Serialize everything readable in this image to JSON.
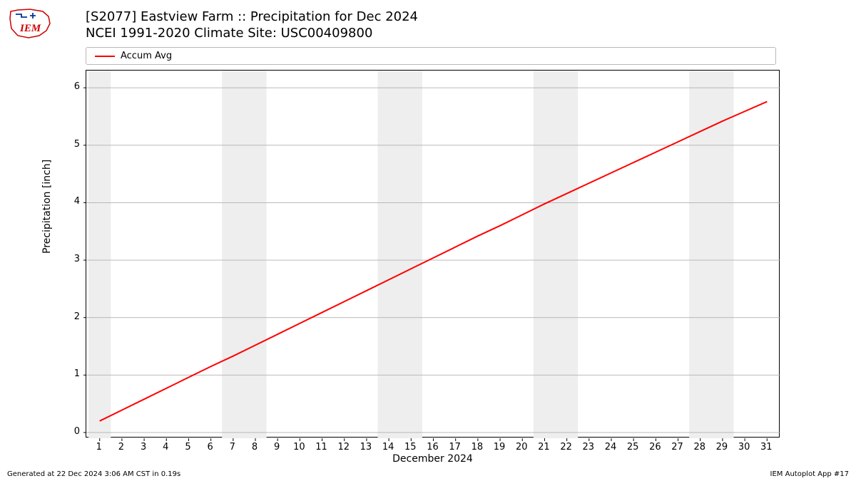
{
  "logo_text": "IEM",
  "title_line1": "[S2077] Eastview Farm :: Precipitation for Dec 2024",
  "title_line2": "NCEI 1991-2020 Climate Site: USC00409800",
  "legend": {
    "label": "Accum Avg",
    "color": "#ff0000"
  },
  "chart": {
    "type": "line",
    "ylabel": "Precipitation [inch]",
    "xlabel": "December 2024",
    "xlim": [
      0.4,
      31.6
    ],
    "ylim": [
      -0.1,
      6.3
    ],
    "yticks": [
      0,
      1,
      2,
      3,
      4,
      5,
      6
    ],
    "xticks": [
      1,
      2,
      3,
      4,
      5,
      6,
      7,
      8,
      9,
      10,
      11,
      12,
      13,
      14,
      15,
      16,
      17,
      18,
      19,
      20,
      21,
      22,
      23,
      24,
      25,
      26,
      27,
      28,
      29,
      30,
      31
    ],
    "grid_color": "#b0b0b0",
    "grid_width": 0.8,
    "background_color": "#ffffff",
    "border_color": "#000000",
    "weekend_bands": [
      {
        "start": 0.5,
        "end": 1.5
      },
      {
        "start": 6.5,
        "end": 8.5
      },
      {
        "start": 13.5,
        "end": 15.5
      },
      {
        "start": 20.5,
        "end": 22.5
      },
      {
        "start": 27.5,
        "end": 29.5
      }
    ],
    "weekend_color": "#eeeeee",
    "series": {
      "color": "#ff0000",
      "line_width": 2,
      "x": [
        1,
        2,
        3,
        4,
        5,
        6,
        7,
        8,
        9,
        10,
        11,
        12,
        13,
        14,
        15,
        16,
        17,
        18,
        19,
        20,
        21,
        22,
        23,
        24,
        25,
        26,
        27,
        28,
        29,
        30,
        31
      ],
      "y": [
        0.2,
        0.39,
        0.58,
        0.77,
        0.96,
        1.15,
        1.33,
        1.52,
        1.71,
        1.9,
        2.09,
        2.28,
        2.47,
        2.66,
        2.85,
        3.04,
        3.23,
        3.42,
        3.6,
        3.79,
        3.98,
        4.16,
        4.34,
        4.52,
        4.7,
        4.88,
        5.06,
        5.24,
        5.42,
        5.59,
        5.76
      ]
    },
    "title_fontsize": 18,
    "label_fontsize": 14,
    "tick_fontsize": 13
  },
  "footer_left": "Generated at 22 Dec 2024 3:06 AM CST in 0.19s",
  "footer_right": "IEM Autoplot App #17"
}
